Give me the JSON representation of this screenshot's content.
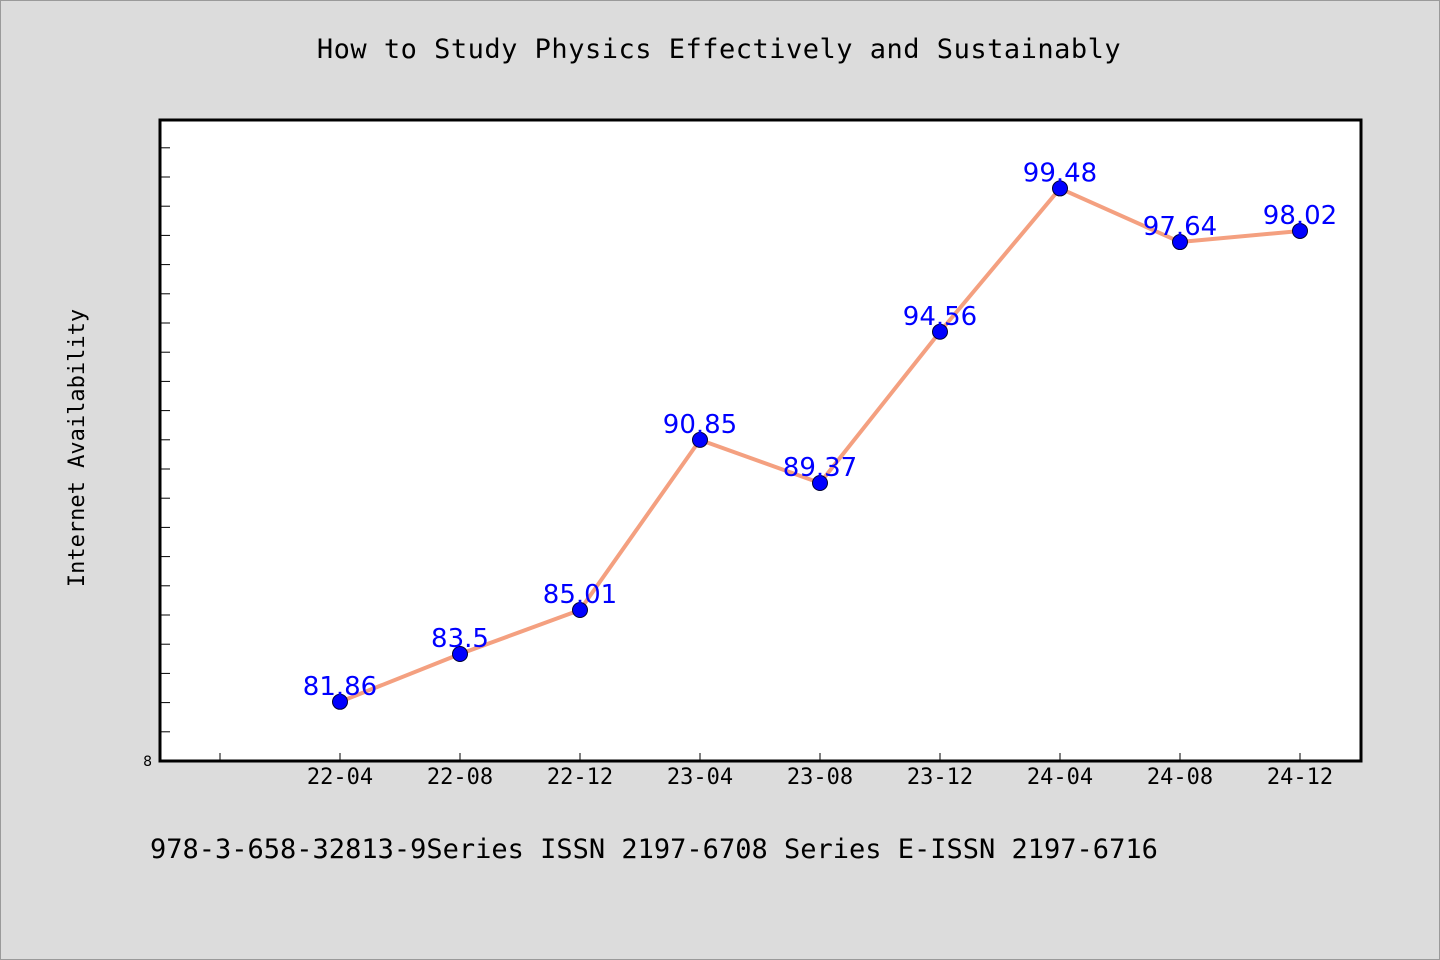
{
  "chart_data": {
    "type": "line",
    "title": "How to Study Physics Effectively and Sustainably",
    "ylabel": "Internet Availability",
    "xlabel": "",
    "categories": [
      "22-04",
      "22-08",
      "22-12",
      "23-04",
      "23-08",
      "23-12",
      "24-04",
      "24-08",
      "24-12"
    ],
    "series": [
      {
        "values": [
          81.86,
          83.5,
          85.01,
          90.85,
          89.37,
          94.56,
          99.48,
          97.64,
          98.02
        ]
      }
    ],
    "y_tick_labels": [
      "8"
    ],
    "ylim": [
      80,
      102
    ],
    "grid": false,
    "line_color": "#f4a080",
    "marker_color": "#0000ff",
    "label_color": "#0000ff"
  },
  "footer": {
    "text": "978-3-658-32813-9Series ISSN 2197-6708 Series E-ISSN 2197-6716"
  },
  "colors": {
    "background": "#dcdcdc",
    "plot_background": "#ffffff"
  }
}
